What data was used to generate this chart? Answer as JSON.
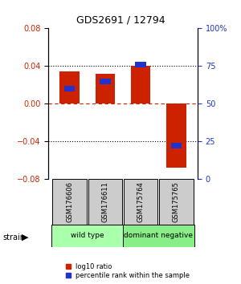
{
  "title": "GDS2691 / 12794",
  "samples": [
    "GSM176606",
    "GSM176611",
    "GSM175764",
    "GSM175765"
  ],
  "log10_ratio": [
    0.034,
    0.032,
    0.04,
    -0.068
  ],
  "percentile_rank_raw": [
    0.6,
    0.65,
    0.76,
    0.22
  ],
  "bar_width": 0.55,
  "ylim": [
    -0.08,
    0.08
  ],
  "yticks_left": [
    -0.08,
    -0.04,
    0,
    0.04,
    0.08
  ],
  "yticks_right": [
    0,
    25,
    50,
    75,
    100
  ],
  "red_color": "#cc2200",
  "blue_color": "#2233cc",
  "groups": [
    {
      "label": "wild type",
      "samples": [
        0,
        1
      ],
      "color": "#aaffaa"
    },
    {
      "label": "dominant negative",
      "samples": [
        2,
        3
      ],
      "color": "#88ee88"
    }
  ],
  "strain_label": "strain",
  "legend_red": "log10 ratio",
  "legend_blue": "percentile rank within the sample",
  "bar_positions": [
    0,
    1,
    2,
    3
  ],
  "sample_box_color": "#cccccc",
  "group_ranges": [
    [
      -0.5,
      1.5
    ],
    [
      1.5,
      3.5
    ]
  ]
}
